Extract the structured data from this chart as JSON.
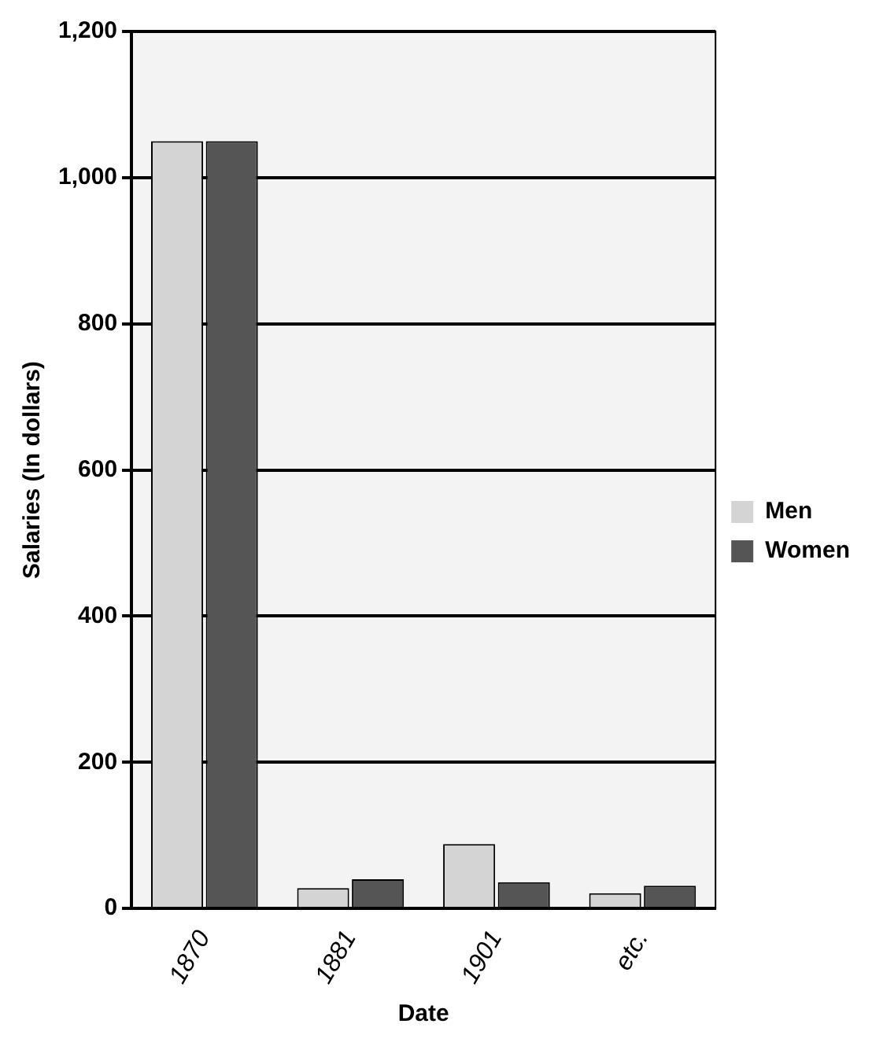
{
  "chart_data": {
    "type": "bar",
    "xlabel": "Date",
    "ylabel": "Salaries (In dollars)",
    "categories": [
      "1870",
      "1881",
      "1901",
      "etc."
    ],
    "series": [
      {
        "name": "Men",
        "color": "#d4d4d4",
        "values": [
          1050,
          28,
          88,
          21
        ]
      },
      {
        "name": "Women",
        "color": "#555555",
        "values": [
          1050,
          40,
          36,
          31
        ]
      }
    ],
    "ylim": [
      0,
      1200
    ],
    "yticks": [
      0,
      {
        "value": 200,
        "label": "200"
      },
      {
        "value": 400,
        "label": "400"
      },
      {
        "value": 600,
        "label": "600"
      },
      {
        "value": 800,
        "label": "800"
      },
      {
        "value": 1000,
        "label": "1,000"
      },
      {
        "value": 1200,
        "label": "1,200"
      }
    ],
    "grid": "y",
    "legend": "right"
  }
}
